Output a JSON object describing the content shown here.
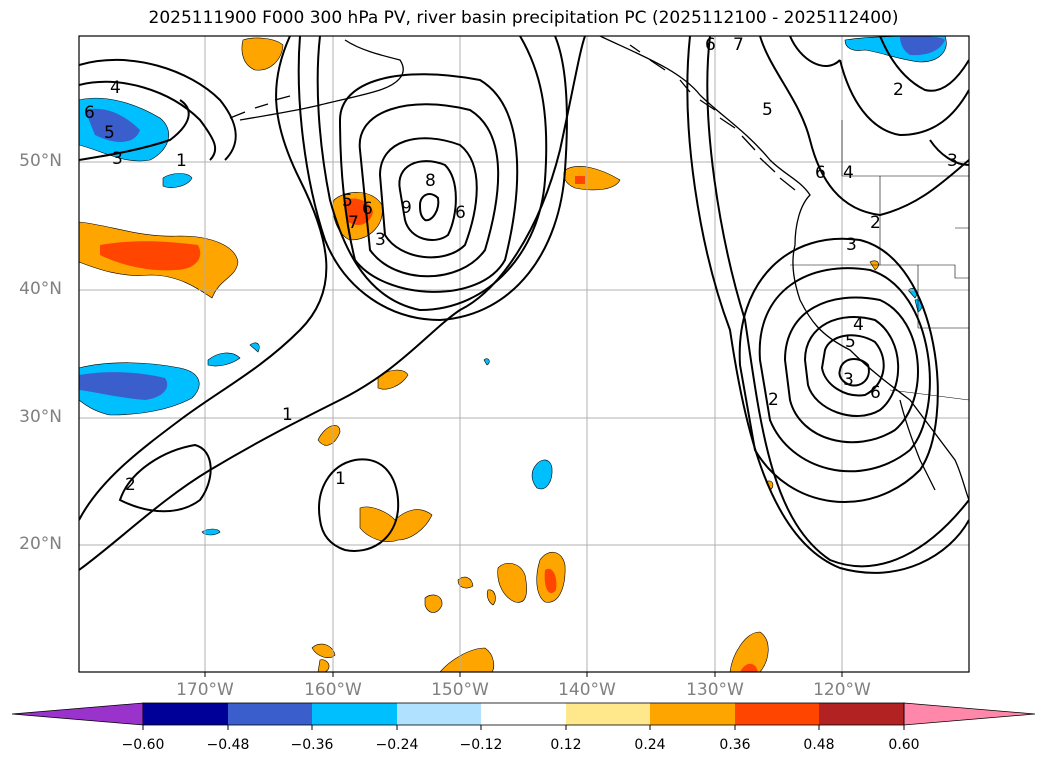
{
  "title": "2025111900 F000 300 hPa PV, river basin precipitation PC (2025112100 - 2025112400)",
  "latitude_labels": [
    "50°N",
    "40°N",
    "30°N",
    "20°N"
  ],
  "longitude_labels": [
    "170°W",
    "160°W",
    "150°W",
    "140°W",
    "130°W",
    "120°W"
  ],
  "contour_labels": [
    "4",
    "6",
    "5",
    "3",
    "1",
    "6",
    "5",
    "7",
    "3",
    "9",
    "6",
    "8",
    "6",
    "7",
    "5",
    "6",
    "4",
    "3",
    "2",
    "2",
    "3",
    "3",
    "5",
    "4",
    "6",
    "2",
    "1",
    "2",
    "1"
  ],
  "colorbar": {
    "ticks": [
      "−0.60",
      "−0.48",
      "−0.36",
      "−0.24",
      "−0.12",
      "0.12",
      "0.24",
      "0.36",
      "0.48",
      "0.60"
    ],
    "colors": [
      "#9933cc",
      "#000099",
      "#3a5fcd",
      "#00bfff",
      "#b0e2ff",
      "#ffffff",
      "#ffe88c",
      "#ffa500",
      "#ff4500",
      "#b22222",
      "#ff88aa"
    ]
  },
  "colors": {
    "grid": "#b0b0b0",
    "contour": "#000000",
    "label": "#808080"
  }
}
